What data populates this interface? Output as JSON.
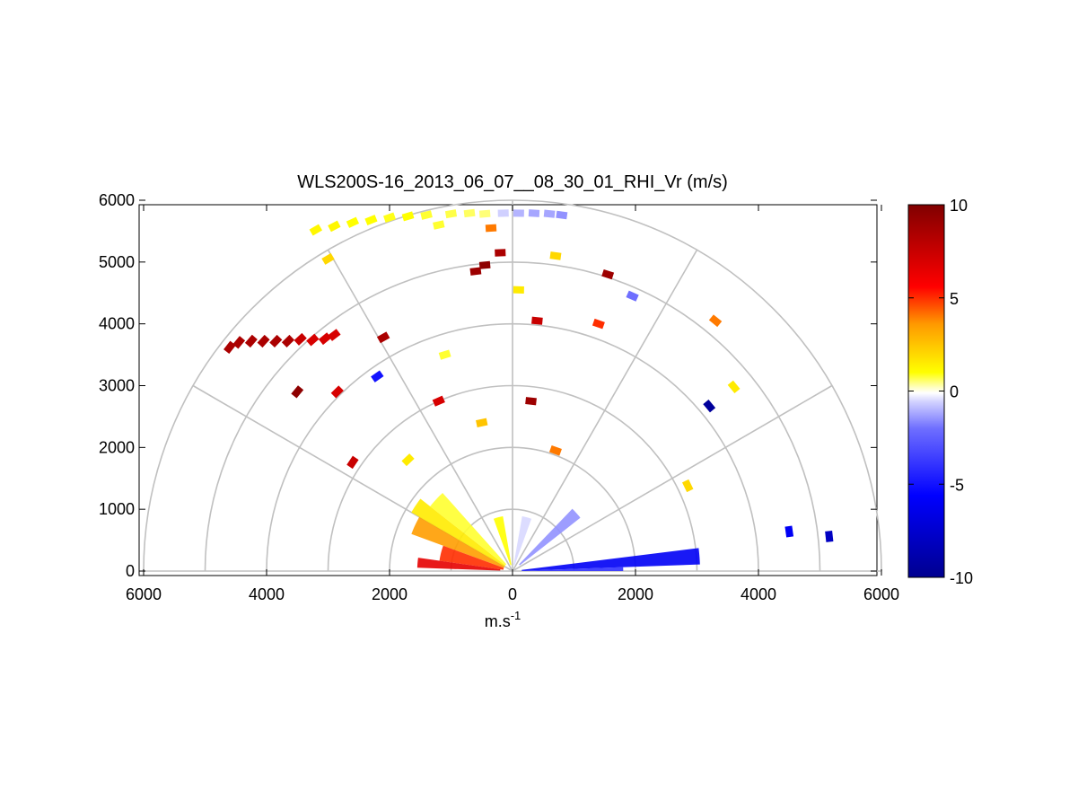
{
  "chart_data": {
    "type": "polar-rhi-scatter",
    "title": "WLS200S-16_2013_06_07__08_30_01_RHI_Vr (m/s)",
    "xlabel": "m.s",
    "xlabel_superscript": "-1",
    "xlim": [
      -6000,
      6000
    ],
    "ylim": [
      0,
      6000
    ],
    "x_ticks": [
      -6000,
      -4000,
      -2000,
      0,
      2000,
      4000,
      6000
    ],
    "x_tick_labels": [
      "6000",
      "4000",
      "2000",
      "0",
      "2000",
      "4000",
      "6000"
    ],
    "y_ticks": [
      0,
      1000,
      2000,
      3000,
      4000,
      5000,
      6000
    ],
    "y_tick_labels": [
      "0",
      "1000",
      "2000",
      "3000",
      "4000",
      "5000",
      "6000"
    ],
    "range_rings_m": [
      1000,
      2000,
      3000,
      4000,
      5000,
      6000
    ],
    "spoke_angles_deg": [
      0,
      30,
      60,
      90,
      120,
      150,
      180
    ],
    "colorbar": {
      "min": -10,
      "max": 10,
      "ticks": [
        10,
        5,
        0,
        -5,
        -10
      ],
      "tick_labels": [
        "10",
        "5",
        "0",
        "-5",
        "-10"
      ]
    },
    "colors": {
      "axis": "#000000",
      "grid": "#c0c0c0"
    },
    "points": [
      {
        "x": -4600,
        "y": 3620,
        "v": 8.5
      },
      {
        "x": -4450,
        "y": 3700,
        "v": 8.5
      },
      {
        "x": -4250,
        "y": 3720,
        "v": 8.5
      },
      {
        "x": -4050,
        "y": 3720,
        "v": 8.5
      },
      {
        "x": -3850,
        "y": 3720,
        "v": 8.5
      },
      {
        "x": -3650,
        "y": 3720,
        "v": 8.5
      },
      {
        "x": -3450,
        "y": 3750,
        "v": 7.5
      },
      {
        "x": -3250,
        "y": 3740,
        "v": 7.0
      },
      {
        "x": -3050,
        "y": 3760,
        "v": 7.0
      },
      {
        "x": -2900,
        "y": 3820,
        "v": 7.0
      },
      {
        "x": -2100,
        "y": 3780,
        "v": 8.5
      },
      {
        "x": -2200,
        "y": 3150,
        "v": -5.0
      },
      {
        "x": -3500,
        "y": 2900,
        "v": 9.5
      },
      {
        "x": -2850,
        "y": 2900,
        "v": 7.0
      },
      {
        "x": -2600,
        "y": 1760,
        "v": 7.5
      },
      {
        "x": -1700,
        "y": 1800,
        "v": 1.5
      },
      {
        "x": -1100,
        "y": 3500,
        "v": 0.8
      },
      {
        "x": -1200,
        "y": 2750,
        "v": 7.0
      },
      {
        "x": -500,
        "y": 2400,
        "v": 2.5
      },
      {
        "x": 300,
        "y": 2750,
        "v": 9.0
      },
      {
        "x": 700,
        "y": 1950,
        "v": 4.0
      },
      {
        "x": -3000,
        "y": 5050,
        "v": 2.0
      },
      {
        "x": -600,
        "y": 4850,
        "v": 9.0
      },
      {
        "x": -450,
        "y": 4950,
        "v": 9.5
      },
      {
        "x": -200,
        "y": 5150,
        "v": 8.5
      },
      {
        "x": -350,
        "y": 5550,
        "v": 4.0
      },
      {
        "x": 100,
        "y": 4550,
        "v": 1.5
      },
      {
        "x": 400,
        "y": 4050,
        "v": 7.5
      },
      {
        "x": 700,
        "y": 5100,
        "v": 2.0
      },
      {
        "x": 1400,
        "y": 4000,
        "v": 5.0
      },
      {
        "x": 1550,
        "y": 4800,
        "v": 9.0
      },
      {
        "x": 1950,
        "y": 4450,
        "v": -2.0
      },
      {
        "x": 3300,
        "y": 4050,
        "v": 4.0
      },
      {
        "x": 3600,
        "y": 2980,
        "v": 1.5
      },
      {
        "x": 3200,
        "y": 2670,
        "v": -9.5
      },
      {
        "x": 2850,
        "y": 1380,
        "v": 2.0
      },
      {
        "x": 4500,
        "y": 640,
        "v": -6.0
      },
      {
        "x": 5150,
        "y": 560,
        "v": -8.0
      },
      {
        "x": -3200,
        "y": 5520,
        "v": 1.2
      },
      {
        "x": -2900,
        "y": 5580,
        "v": 1.2
      },
      {
        "x": -2600,
        "y": 5640,
        "v": 1.0
      },
      {
        "x": -2300,
        "y": 5680,
        "v": 1.0
      },
      {
        "x": -2000,
        "y": 5720,
        "v": 0.9
      },
      {
        "x": -1700,
        "y": 5740,
        "v": 1.0
      },
      {
        "x": -1400,
        "y": 5760,
        "v": 0.8
      },
      {
        "x": -1200,
        "y": 5600,
        "v": 0.8
      },
      {
        "x": -1000,
        "y": 5780,
        "v": 0.7
      },
      {
        "x": -700,
        "y": 5790,
        "v": 0.6
      },
      {
        "x": -450,
        "y": 5780,
        "v": 0.5
      },
      {
        "x": -150,
        "y": 5790,
        "v": -0.6
      },
      {
        "x": 100,
        "y": 5790,
        "v": -1.0
      },
      {
        "x": 350,
        "y": 5790,
        "v": -1.2
      },
      {
        "x": 600,
        "y": 5780,
        "v": -1.2
      },
      {
        "x": 800,
        "y": 5760,
        "v": -1.5
      }
    ],
    "wedges": [
      {
        "r0": 150,
        "r1": 1750,
        "a0": 150,
        "a1": 160,
        "v": 3.5
      },
      {
        "r0": 150,
        "r1": 1900,
        "a0": 142,
        "a1": 150,
        "v": 1.5
      },
      {
        "r0": 150,
        "r1": 1700,
        "a0": 132,
        "a1": 142,
        "v": 0.8
      },
      {
        "r0": 150,
        "r1": 1200,
        "a0": 160,
        "a1": 172,
        "v": 5.0
      },
      {
        "r0": 200,
        "r1": 1550,
        "a0": 172,
        "a1": 178,
        "v": 6.5
      },
      {
        "r0": 100,
        "r1": 900,
        "a0": 100,
        "a1": 110,
        "v": 1.0
      },
      {
        "r0": 100,
        "r1": 900,
        "a0": 70,
        "a1": 80,
        "v": -0.5
      },
      {
        "r0": 150,
        "r1": 1400,
        "a0": 38,
        "a1": 46,
        "v": -1.5
      },
      {
        "r0": 150,
        "r1": 3050,
        "a0": 2,
        "a1": 7,
        "v": -6.0
      },
      {
        "r0": 150,
        "r1": 1800,
        "a0": 0,
        "a1": 2,
        "v": -4.0
      }
    ]
  }
}
